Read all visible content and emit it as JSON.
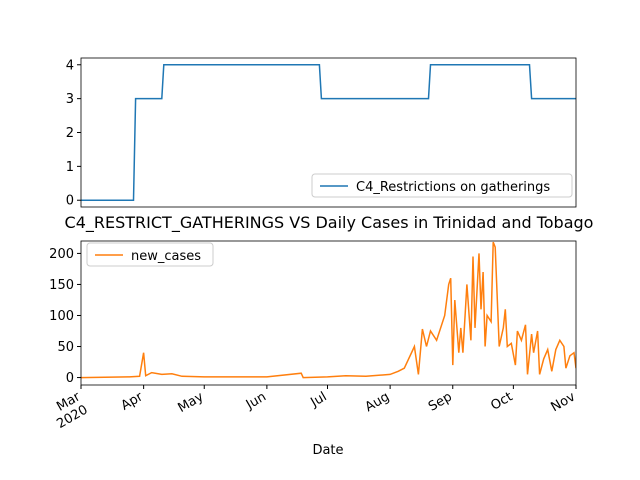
{
  "chart_data": [
    {
      "type": "line",
      "x": [
        "2020-03-01",
        "2020-03-27",
        "2020-03-28",
        "2020-04-10",
        "2020-04-11",
        "2020-06-27",
        "2020-06-28",
        "2020-08-20",
        "2020-08-21",
        "2020-10-09",
        "2020-10-10",
        "2020-11-01"
      ],
      "series": [
        {
          "name": "C4_Restrictions on gatherings",
          "color": "#1f77b4",
          "values": [
            0,
            0,
            3,
            3,
            4,
            4,
            3,
            3,
            4,
            4,
            3,
            3
          ]
        }
      ],
      "xlim": [
        "2020-03-01",
        "2020-11-01"
      ],
      "ylim": [
        -0.2,
        4.2
      ],
      "yticks": [
        0,
        1,
        2,
        3,
        4
      ],
      "legend": "lower right"
    },
    {
      "type": "line",
      "title": "C4_RESTRICT_GATHERINGS VS Daily Cases in Trinidad and Tobago",
      "xlabel": "Date",
      "x": [
        "2020-03-01",
        "2020-03-25",
        "2020-03-30",
        "2020-04-01",
        "2020-04-02",
        "2020-04-05",
        "2020-04-10",
        "2020-04-15",
        "2020-04-20",
        "2020-05-01",
        "2020-06-01",
        "2020-06-18",
        "2020-06-19",
        "2020-07-01",
        "2020-07-10",
        "2020-07-20",
        "2020-08-01",
        "2020-08-05",
        "2020-08-08",
        "2020-08-13",
        "2020-08-15",
        "2020-08-17",
        "2020-08-19",
        "2020-08-21",
        "2020-08-24",
        "2020-08-28",
        "2020-08-30",
        "2020-08-31",
        "2020-09-01",
        "2020-09-02",
        "2020-09-04",
        "2020-09-05",
        "2020-09-06",
        "2020-09-08",
        "2020-09-10",
        "2020-09-11",
        "2020-09-12",
        "2020-09-14",
        "2020-09-15",
        "2020-09-16",
        "2020-09-17",
        "2020-09-18",
        "2020-09-20",
        "2020-09-21",
        "2020-09-22",
        "2020-09-24",
        "2020-09-26",
        "2020-09-27",
        "2020-09-28",
        "2020-09-30",
        "2020-10-02",
        "2020-10-03",
        "2020-10-05",
        "2020-10-07",
        "2020-10-08",
        "2020-10-10",
        "2020-10-11",
        "2020-10-13",
        "2020-10-14",
        "2020-10-16",
        "2020-10-18",
        "2020-10-20",
        "2020-10-22",
        "2020-10-24",
        "2020-10-26",
        "2020-10-27",
        "2020-10-29",
        "2020-10-31",
        "2020-11-01"
      ],
      "series": [
        {
          "name": "new_cases",
          "color": "#ff7f0e",
          "values": [
            0,
            1,
            2,
            40,
            3,
            8,
            5,
            6,
            2,
            1,
            1,
            7,
            0,
            1,
            3,
            2,
            5,
            10,
            15,
            50,
            5,
            78,
            50,
            75,
            60,
            100,
            150,
            160,
            20,
            125,
            40,
            80,
            40,
            150,
            60,
            195,
            80,
            200,
            110,
            170,
            50,
            100,
            90,
            218,
            210,
            50,
            80,
            110,
            50,
            55,
            20,
            75,
            60,
            85,
            5,
            70,
            40,
            75,
            5,
            30,
            45,
            10,
            45,
            60,
            50,
            15,
            35,
            40,
            15
          ]
        }
      ],
      "xlim": [
        "2020-03-01",
        "2020-11-01"
      ],
      "xticks": [
        {
          "value": "2020-03-01",
          "label": "Mar\n2020"
        },
        {
          "value": "2020-04-01",
          "label": "Apr"
        },
        {
          "value": "2020-05-01",
          "label": "May"
        },
        {
          "value": "2020-06-01",
          "label": "Jun"
        },
        {
          "value": "2020-07-01",
          "label": "Jul"
        },
        {
          "value": "2020-08-01",
          "label": "Aug"
        },
        {
          "value": "2020-09-01",
          "label": "Sep"
        },
        {
          "value": "2020-10-01",
          "label": "Oct"
        },
        {
          "value": "2020-11-01",
          "label": "Nov"
        }
      ],
      "ylim": [
        -12,
        220
      ],
      "yticks": [
        0,
        50,
        100,
        150,
        200
      ],
      "legend": "upper left"
    }
  ]
}
